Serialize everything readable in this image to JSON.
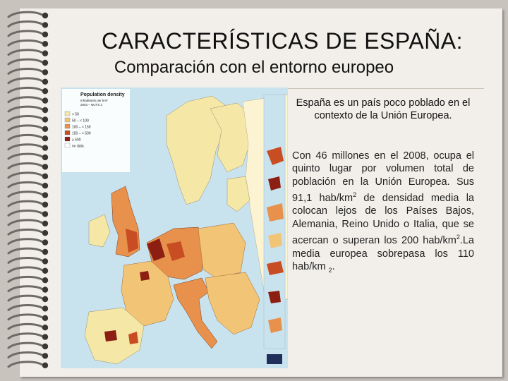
{
  "slide": {
    "title": "CARACTERÍSTICAS DE ESPAÑA:",
    "subtitle": "Comparación con el entorno europeo"
  },
  "map": {
    "title": "Population density",
    "subtitle_line1": "Inhabitants per km²",
    "subtitle_line2": "2003 – NUTS 2",
    "legend": [
      "< 50",
      "50 – < 100",
      "100 – < 150",
      "150 – < 500",
      "≥ 500",
      "no data"
    ],
    "legend_colors": [
      "#f5e7a6",
      "#f2c476",
      "#e7914c",
      "#c84d22",
      "#8c1e12",
      "#ffffff"
    ],
    "sea_color": "#c9e3ee",
    "nonEU_color": "#fbf3d2",
    "icon": "eurostat-logo-icon"
  },
  "text": {
    "lead": "España es un país poco poblado en el contexto de la Unión Europea.",
    "body_part1": "Con 46 millones en el 2008, ocupa el quinto lugar por volumen total de población en la Unión Europea. Sus 91,1 hab/km",
    "sup1": "2",
    "body_part2": " de densidad media la colocan lejos de los Países Bajos, Alemania, Reino Unido o Italia, que se acercan o superan los 200 hab/km",
    "sup2": "2",
    "body_part3": ".La media europea sobrepasa los 110 hab/km ",
    "sub3": "2",
    "body_part4": "."
  }
}
